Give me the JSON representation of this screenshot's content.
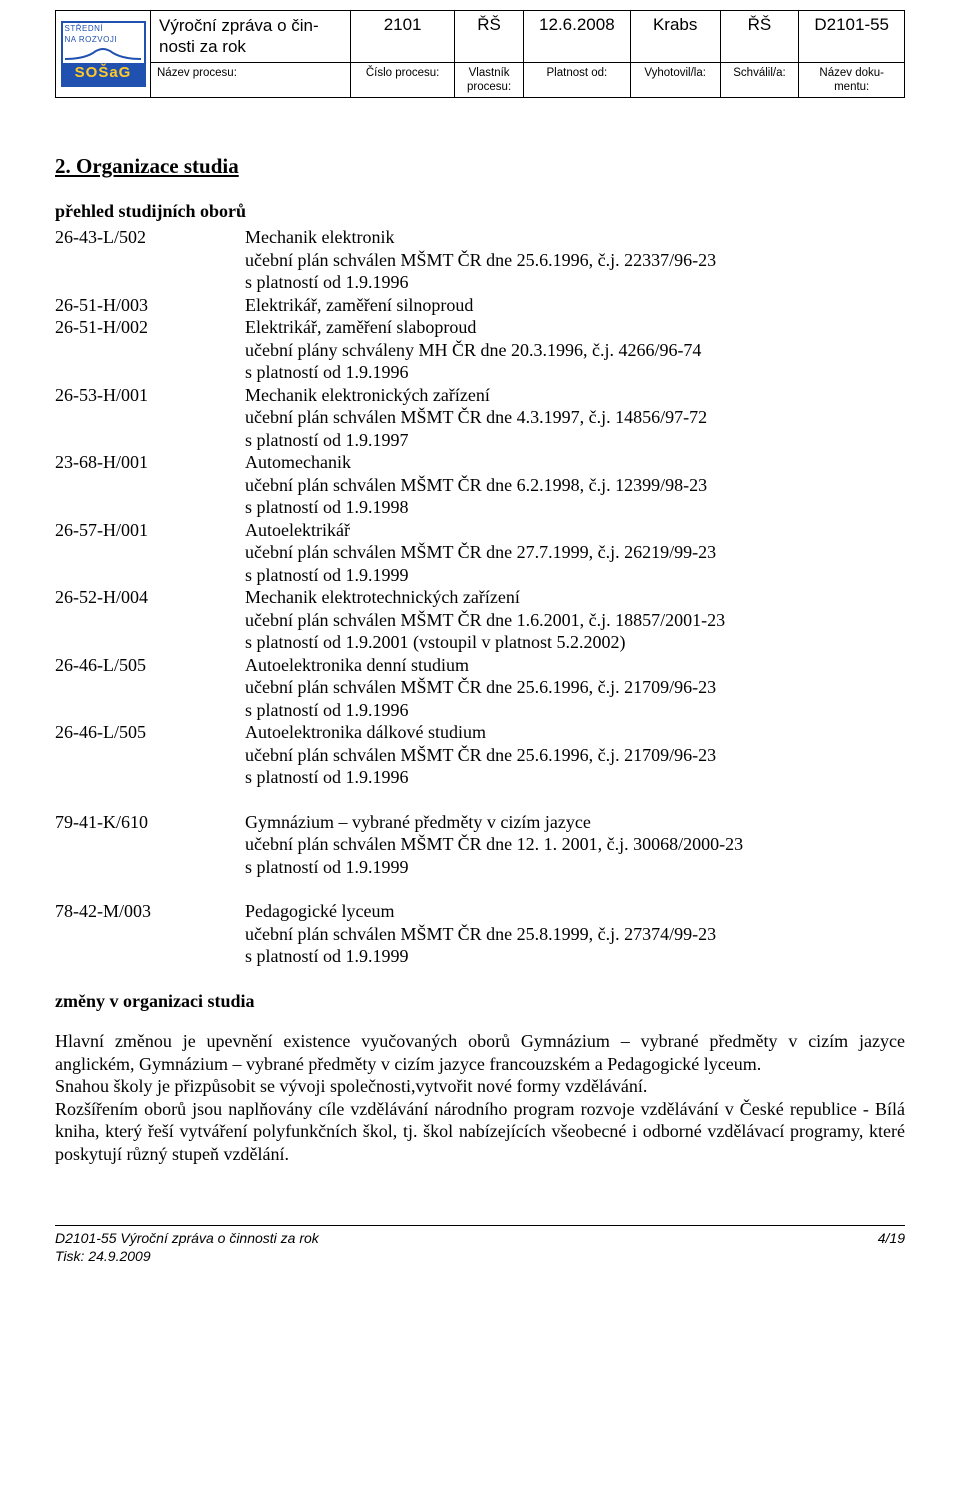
{
  "header": {
    "logo": {
      "top1": "STŘEDNÍ",
      "top2": "NA ROZVOJI",
      "name": "SOŠaG"
    },
    "title": "Výroční zpráva o čin-\nnosti za rok",
    "cols": {
      "c1": {
        "val": "2101",
        "lbl": "Číslo procesu:"
      },
      "c2": {
        "val": "ŘŠ",
        "lbl": "Vlastník\nprocesu:"
      },
      "c3": {
        "val": "12.6.2008",
        "lbl": "Platnost od:"
      },
      "c4": {
        "val": "Krabs",
        "lbl": "Vyhotovil/la:"
      },
      "c5": {
        "val": "ŘŠ",
        "lbl": "Schválil/a:"
      },
      "c6": {
        "val": "D2101-55",
        "lbl": "Název doku-\nmentu:"
      }
    },
    "title_lbl": "Název procesu:"
  },
  "section_title": "2. Organizace studia",
  "overview_label": "přehled studijních oborů",
  "items": [
    {
      "code": "26-43-L/502",
      "name": "Mechanik elektronik",
      "l2": "učební plán schválen MŠMT ČR dne 25.6.1996, č.j. 22337/96-23",
      "l3": "s platností od 1.9.1996"
    },
    {
      "code": "26-51-H/003",
      "name": "Elektrikář, zaměření silnoproud",
      "l2": "",
      "l3": ""
    },
    {
      "code": "26-51-H/002",
      "name": "Elektrikář, zaměření slaboproud",
      "l2": "učební plány  schváleny MH ČR dne 20.3.1996, č.j. 4266/96-74",
      "l3": "s platností od 1.9.1996"
    },
    {
      "code": "26-53-H/001",
      "name": "Mechanik elektronických zařízení",
      "l2": "učební plán schválen MŠMT ČR dne 4.3.1997, č.j. 14856/97-72",
      "l3": "s platností od 1.9.1997"
    },
    {
      "code": "23-68-H/001",
      "name": "Automechanik",
      "l2": "učební plán schválen MŠMT ČR dne 6.2.1998, č.j. 12399/98-23",
      "l3": "s platností od 1.9.1998"
    },
    {
      "code": "26-57-H/001",
      "name": "Autoelektrikář",
      "l2": "učební plán schválen MŠMT ČR dne 27.7.1999, č.j. 26219/99-23",
      "l3": "s platností od  1.9.1999"
    },
    {
      "code": "26-52-H/004",
      "name": "Mechanik elektrotechnických zařízení",
      "l2": "učební plán schválen MŠMT ČR dne 1.6.2001, č.j. 18857/2001-23",
      "l3": "s platností od 1.9.2001 (vstoupil v platnost 5.2.2002)"
    },
    {
      "code": "26-46-L/505",
      "name": "Autoelektronika denní studium",
      "l2": "učební plán schválen MŠMT ČR dne 25.6.1996, č.j. 21709/96-23",
      "l3": "s platností od 1.9.1996"
    },
    {
      "code": "26-46-L/505",
      "name": "Autoelektronika dálkové studium",
      "l2": "učební plán schválen MŠMT ČR dne 25.6.1996, č.j. 21709/96-23",
      "l3": "s platností  od 1.9.1996"
    }
  ],
  "items2": [
    {
      "code": "79-41-K/610",
      "name": "Gymnázium – vybrané předměty v cizím jazyce",
      "l2": "učební plán schválen MŠMT ČR dne 12. 1. 2001, č.j. 30068/2000-23",
      "l3": "s platností  od 1.9.1999"
    }
  ],
  "items3": [
    {
      "code": "78-42-M/003",
      "name": "Pedagogické lyceum",
      "l2": "učební plán schválen MŠMT ČR dne 25.8.1999, č.j. 27374/99-23",
      "l3": "s platností  od 1.9.1999"
    }
  ],
  "changes_title": "změny v organizaci studia",
  "para1": "Hlavní změnou je upevnění existence vyučovaných oborů Gymnázium – vybrané předměty v cizím jazyce anglickém, Gymnázium – vybrané předměty v cizím jazyce francouzském a Pedagogické lyceum.",
  "para2": "Snahou školy je přizpůsobit se vývoji společnosti,vytvořit nové  formy  vzdělávání.",
  "para3": "Rozšířením oborů jsou naplňovány cíle vzdělávání  národního program rozvoje vzdělávání v České republice - Bílá kniha, který řeší vytváření polyfunkčních škol, tj. škol nabízejících všeobecné i odborné vzdělávací programy, které poskytují různý stupeň vzdělání.",
  "footer": {
    "left1": "D2101-55 Výroční zpráva o činnosti za rok",
    "left2": "Tisk: 24.9.2009",
    "right": "4/19"
  }
}
